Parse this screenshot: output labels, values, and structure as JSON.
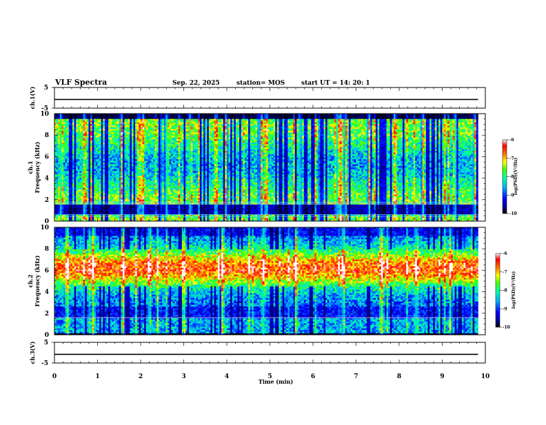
{
  "header": {
    "title": "VLF Spectra",
    "date": "Sep. 22, 2025",
    "station": "station= MOS",
    "start": "start  UT =   14: 20: 1"
  },
  "chart_data": [
    {
      "type": "line",
      "name": "ch1-voltage",
      "ylabel": "ch.1(V)",
      "ylim": [
        -5,
        5
      ],
      "yticks": [
        "5",
        "-5"
      ],
      "xlim": [
        0,
        10
      ],
      "series": [
        {
          "x": [
            0,
            9.83
          ],
          "y": [
            -0.8,
            -0.8
          ]
        }
      ]
    },
    {
      "type": "heatmap",
      "name": "ch1-spectrogram",
      "ylabel": "ch.1\nFrequency (kHz)",
      "xlim": [
        0,
        10
      ],
      "ylim": [
        0,
        10
      ],
      "data_xmax": 9.83,
      "yticks": [
        "0",
        "2",
        "4",
        "6",
        "8",
        "10"
      ],
      "colorbar": {
        "label": "log(PSD)(V²/Hz)",
        "ticks": [
          "-6",
          "-7",
          "-8",
          "-9",
          "-10"
        ],
        "range": [
          -10,
          -6
        ]
      },
      "features": {
        "dark_band_khz": [
          0.6,
          1.6
        ],
        "dark_top_khz": [
          9.6,
          10.0
        ],
        "horizontal_lines_khz": [
          0.45,
          0.6,
          1.6,
          1.75
        ],
        "burst_minutes": [
          0.15,
          0.7,
          1.55,
          2.05,
          2.6,
          3.15,
          3.75,
          4.8,
          4.92,
          5.7,
          6.55,
          6.65,
          6.75,
          7.3,
          7.9,
          8.55,
          9.3,
          9.75
        ]
      }
    },
    {
      "type": "heatmap",
      "name": "ch2-spectrogram",
      "ylabel": "ch.2\nFrequency (kHz)",
      "xlim": [
        0,
        10
      ],
      "ylim": [
        0,
        10
      ],
      "data_xmax": 9.83,
      "yticks": [
        "0",
        "2",
        "4",
        "6",
        "8",
        "10"
      ],
      "colorbar": {
        "label": "log(PSD)(V²/Hz)",
        "ticks": [
          "-6",
          "-7",
          "-8",
          "-9",
          "-10"
        ],
        "range": [
          -10,
          -6
        ]
      },
      "features": {
        "intense_band_khz": [
          5.0,
          7.5
        ],
        "dark_band_khz": [
          1.6,
          2.7
        ],
        "horizontal_lines_khz": [
          1.6
        ],
        "burst_minutes": [
          0.3,
          0.9,
          1.6,
          2.2,
          3.0,
          3.9,
          4.85,
          5.6,
          6.7,
          7.6,
          8.4,
          9.2
        ]
      }
    },
    {
      "type": "line",
      "name": "ch3-voltage",
      "ylabel": "ch.3(V)",
      "ylim": [
        -5,
        5
      ],
      "yticks": [
        "5",
        "-5"
      ],
      "xlim": [
        0,
        10
      ],
      "xlabel": "Time  (min)",
      "xticks": [
        "0",
        "1",
        "2",
        "3",
        "4",
        "5",
        "6",
        "7",
        "8",
        "9",
        "10"
      ],
      "series": [
        {
          "x": [
            0,
            9.83
          ],
          "y": [
            -0.8,
            -0.8
          ]
        }
      ]
    }
  ]
}
